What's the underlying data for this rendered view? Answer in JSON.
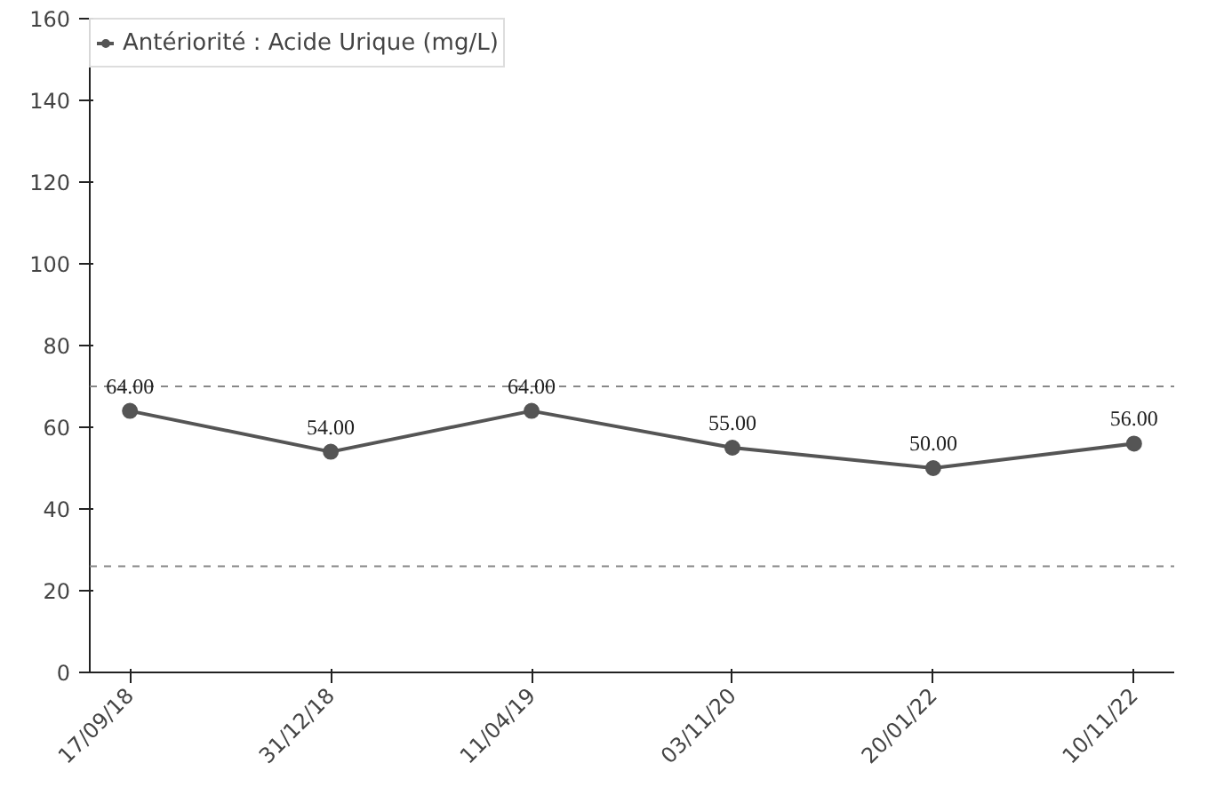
{
  "chart_data": {
    "type": "line",
    "categories": [
      "17/09/18",
      "31/12/18",
      "11/04/19",
      "03/11/20",
      "20/01/22",
      "10/11/22"
    ],
    "series": [
      {
        "name": "Antériorité : Acide Urique (mg/L)",
        "color": "#555555",
        "values": [
          64,
          54,
          64,
          55,
          50,
          56
        ],
        "value_labels": [
          "64.00",
          "54.00",
          "64.00",
          "55.00",
          "50.00",
          "56.00"
        ]
      }
    ],
    "ylim": [
      0,
      160
    ],
    "yticks": [
      0,
      20,
      40,
      60,
      80,
      100,
      120,
      140,
      160
    ],
    "ref_lines": [
      {
        "axis": "y",
        "value": 70,
        "color": "#888888",
        "line_style": "dashed"
      },
      {
        "axis": "y",
        "value": 26,
        "color": "#888888",
        "line_style": "dashed"
      }
    ],
    "marker": "circle",
    "line_style": "solid",
    "legend": "top left",
    "grid": false
  }
}
